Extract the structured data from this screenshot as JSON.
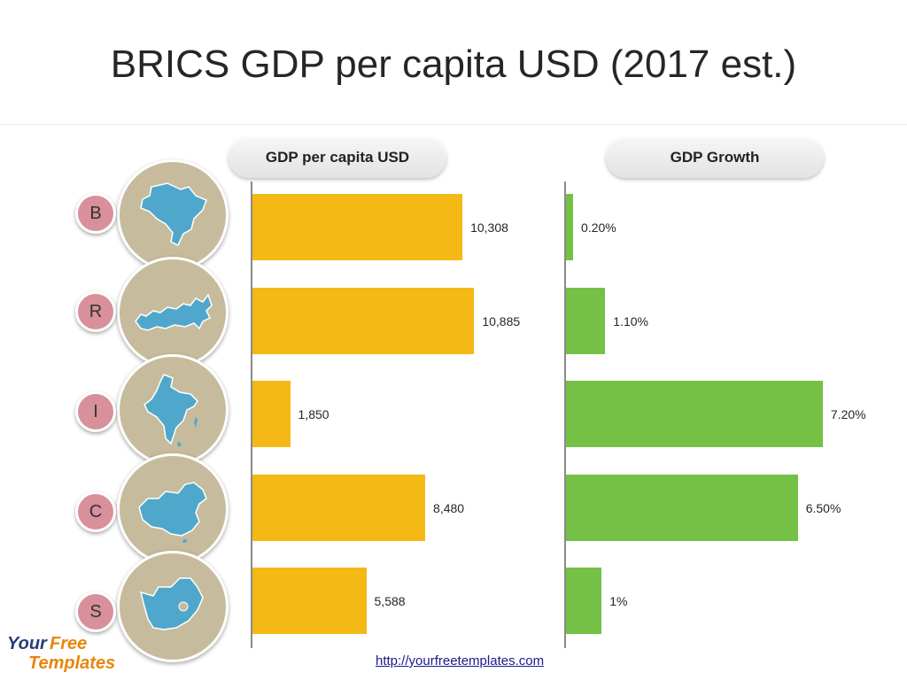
{
  "title": "BRICS GDP per capita USD (2017 est.)",
  "headers": {
    "gdp": "GDP per capita USD",
    "growth": "GDP Growth"
  },
  "colors": {
    "gdp_bar": "#f4b914",
    "growth_bar": "#74c146",
    "country_circle": "#c6bb9c",
    "letter_badge": "#d8909a",
    "map_fill": "#4fa8cc"
  },
  "countries": [
    {
      "letter": "B",
      "icon": "brazil-map-icon"
    },
    {
      "letter": "R",
      "icon": "russia-map-icon"
    },
    {
      "letter": "I",
      "icon": "india-map-icon"
    },
    {
      "letter": "C",
      "icon": "china-map-icon"
    },
    {
      "letter": "S",
      "icon": "south-africa-map-icon"
    }
  ],
  "chart_data": [
    {
      "type": "bar",
      "orientation": "horizontal",
      "title": "GDP per capita USD",
      "categories": [
        "B",
        "R",
        "I",
        "C",
        "S"
      ],
      "values": [
        10308,
        10885,
        1850,
        8480,
        5588
      ],
      "labels": [
        "10,308",
        "10,885",
        "1,850",
        "8,480",
        "5,588"
      ],
      "xlim": [
        0,
        12000
      ],
      "grid": false
    },
    {
      "type": "bar",
      "orientation": "horizontal",
      "title": "GDP Growth",
      "categories": [
        "B",
        "R",
        "I",
        "C",
        "S"
      ],
      "values": [
        0.2,
        1.1,
        7.2,
        6.5,
        1.0
      ],
      "labels": [
        "0.20%",
        "1.10%",
        "7.20%",
        "6.50%",
        "1%"
      ],
      "xlim": [
        0,
        7.5
      ],
      "grid": false
    }
  ],
  "logo": {
    "your": "Your",
    "free": "Free",
    "templates": "Templates"
  },
  "footer": {
    "url": "http://yourfreetemplates.com"
  }
}
